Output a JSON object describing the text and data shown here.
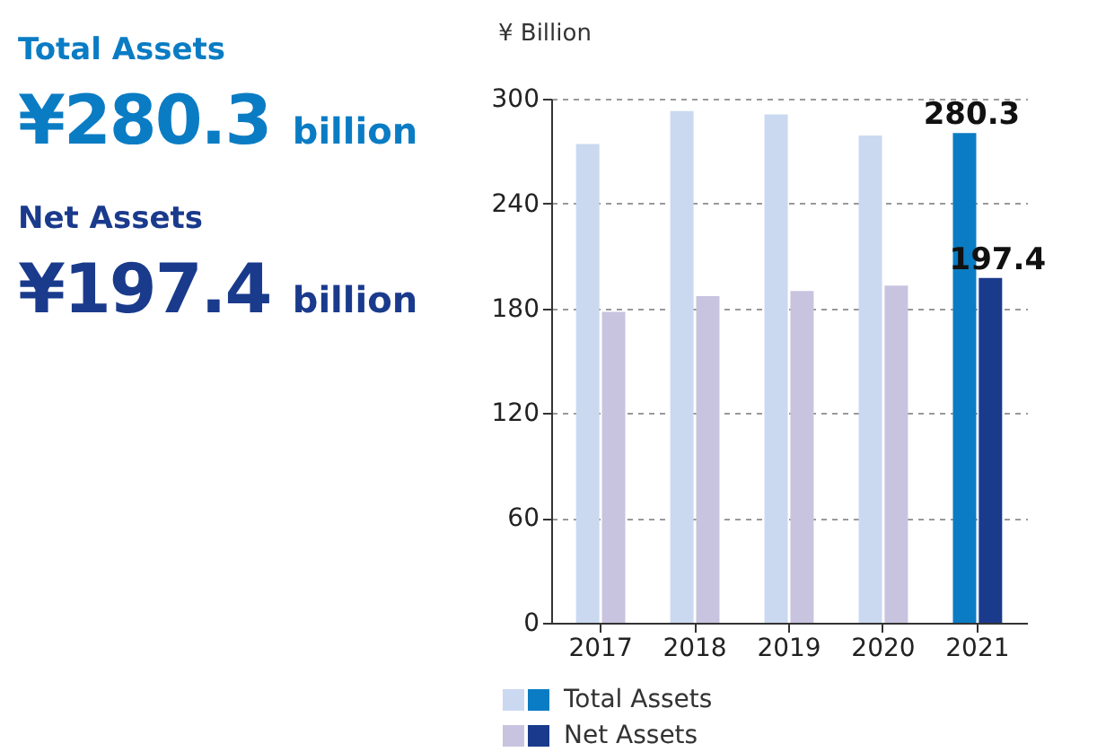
{
  "chart_data": [
    {
      "type": "other",
      "annotations": [
        "Total Assets",
        "¥280.3 billion",
        "Net Assets",
        "¥197.4 billion"
      ]
    },
    {
      "type": "bar",
      "ylabel": "¥ Billion",
      "categories": [
        "2017",
        "2018",
        "2019",
        "2020",
        "2021"
      ],
      "series": [
        {
          "name": "Total Assets",
          "colors": [
            "#cad9f0",
            "#cad9f0",
            "#cad9f0",
            "#cad9f0",
            "#0a7cc4"
          ],
          "values": [
            274,
            293,
            291,
            279,
            280.3
          ],
          "value_labels": [
            null,
            null,
            null,
            null,
            "280.3"
          ]
        },
        {
          "name": "Net Assets",
          "colors": [
            "#c8c4df",
            "#c8c4df",
            "#c8c4df",
            "#c8c4df",
            "#1a3a8c"
          ],
          "values": [
            178,
            187,
            190,
            193,
            197.4
          ],
          "value_labels": [
            null,
            null,
            null,
            null,
            "197.4"
          ]
        }
      ],
      "ylim": [
        0,
        300
      ],
      "yticks": [
        0,
        60,
        120,
        180,
        240,
        300
      ],
      "grid": "y",
      "legend": "bottom"
    }
  ]
}
